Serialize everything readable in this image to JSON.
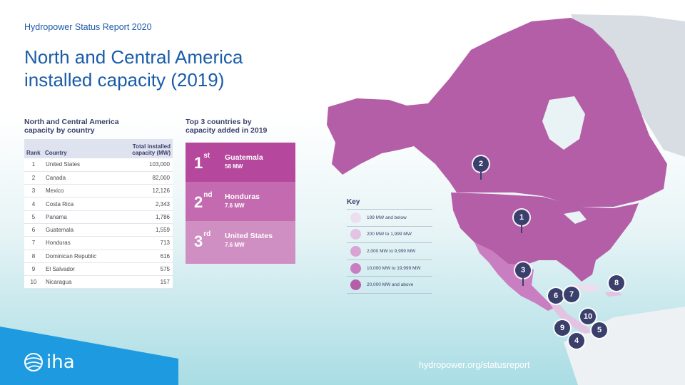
{
  "report": "Hydropower Status Report 2020",
  "title_line1": "North and Central America",
  "title_line2": "installed capacity (2019)",
  "table": {
    "heading_line1": "North and Central America",
    "heading_line2": "capacity by country",
    "col_rank": "Rank",
    "col_country": "Country",
    "col_total_line1": "Total installed",
    "col_total_line2": "capacity (MW)",
    "rows": [
      {
        "rank": "1",
        "country": "United States",
        "capacity": "103,000"
      },
      {
        "rank": "2",
        "country": "Canada",
        "capacity": "82,000"
      },
      {
        "rank": "3",
        "country": "Mexico",
        "capacity": "12,126"
      },
      {
        "rank": "4",
        "country": "Costa Rica",
        "capacity": "2,343"
      },
      {
        "rank": "5",
        "country": "Panama",
        "capacity": "1,786"
      },
      {
        "rank": "6",
        "country": "Guatemala",
        "capacity": "1,559"
      },
      {
        "rank": "7",
        "country": "Honduras",
        "capacity": "713"
      },
      {
        "rank": "8",
        "country": "Dominican Republic",
        "capacity": "616"
      },
      {
        "rank": "9",
        "country": "El Salvador",
        "capacity": "575"
      },
      {
        "rank": "10",
        "country": "Nicaragua",
        "capacity": "157"
      }
    ]
  },
  "top3": {
    "heading_line1": "Top 3 countries by",
    "heading_line2": "capacity added in 2019",
    "items": [
      {
        "ord": "1",
        "suffix": "st",
        "country": "Guatemala",
        "value": "58 MW",
        "color": "#b5479c"
      },
      {
        "ord": "2",
        "suffix": "nd",
        "country": "Honduras",
        "value": "7.6 MW",
        "color": "#c46ab0"
      },
      {
        "ord": "3",
        "suffix": "rd",
        "country": "United States",
        "value": "7.6 MW",
        "color": "#d08fc2"
      }
    ]
  },
  "key": {
    "title": "Key",
    "items": [
      {
        "label": "199 MW and below",
        "color": "#ecdeee"
      },
      {
        "label": "200 MW to 1,999 MW",
        "color": "#e2c3e2"
      },
      {
        "label": "2,000 MW to 9,999 MW",
        "color": "#d8a4d4"
      },
      {
        "label": "10,000 MW to 19,999 MW",
        "color": "#c97ec1"
      },
      {
        "label": "20,000 MW and above",
        "color": "#b55ea8"
      }
    ]
  },
  "map_pins": [
    "1",
    "2",
    "3",
    "4",
    "5",
    "6",
    "7",
    "8",
    "9",
    "10"
  ],
  "colors": {
    "pin": "#3a3f6b",
    "land_high": "#b55ea8",
    "title": "#1a5ca8"
  },
  "logo_text": "iha",
  "url": "hydropower.org/statusreport"
}
